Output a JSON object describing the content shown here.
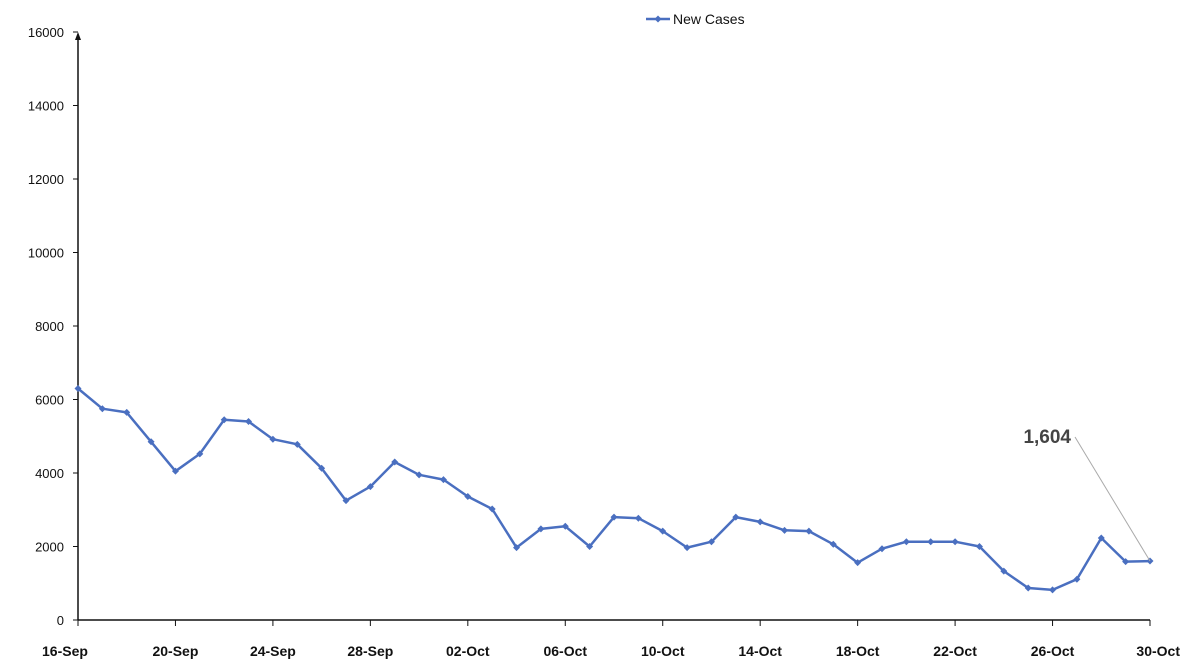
{
  "chart_data": {
    "type": "line",
    "title": "",
    "xlabel": "",
    "ylabel": "",
    "ylim": [
      0,
      16000
    ],
    "y_ticks": [
      0,
      2000,
      4000,
      6000,
      8000,
      10000,
      12000,
      14000,
      16000
    ],
    "x_tick_labels": [
      "16-Sep",
      "20-Sep",
      "24-Sep",
      "28-Sep",
      "02-Oct",
      "06-Oct",
      "10-Oct",
      "14-Oct",
      "18-Oct",
      "22-Oct",
      "26-Oct",
      "30-Oct"
    ],
    "x": [
      "16-Sep",
      "17-Sep",
      "18-Sep",
      "19-Sep",
      "20-Sep",
      "21-Sep",
      "22-Sep",
      "23-Sep",
      "24-Sep",
      "25-Sep",
      "26-Sep",
      "27-Sep",
      "28-Sep",
      "29-Sep",
      "30-Sep",
      "01-Oct",
      "02-Oct",
      "03-Oct",
      "04-Oct",
      "05-Oct",
      "06-Oct",
      "07-Oct",
      "08-Oct",
      "09-Oct",
      "10-Oct",
      "11-Oct",
      "12-Oct",
      "13-Oct",
      "14-Oct",
      "15-Oct",
      "16-Oct",
      "17-Oct",
      "18-Oct",
      "19-Oct",
      "20-Oct",
      "21-Oct",
      "22-Oct",
      "23-Oct",
      "24-Oct",
      "25-Oct",
      "26-Oct",
      "27-Oct",
      "28-Oct",
      "29-Oct",
      "30-Oct"
    ],
    "series": [
      {
        "name": "New Cases",
        "color": "#4a6fc0",
        "values": [
          6300,
          5750,
          5650,
          4850,
          4050,
          4520,
          5450,
          5400,
          4920,
          4780,
          4130,
          3250,
          3630,
          4300,
          3950,
          3820,
          3360,
          3020,
          1970,
          2480,
          2550,
          2000,
          2800,
          2770,
          2420,
          1970,
          2130,
          2800,
          2670,
          2440,
          2420,
          2060,
          1560,
          1940,
          2130,
          2130,
          2130,
          2000,
          1330,
          870,
          820,
          1110,
          2230,
          1590,
          1604
        ]
      }
    ],
    "legend": {
      "position": "top-center"
    },
    "grid": false,
    "annotation": {
      "text": "1,604",
      "target_index": 44
    }
  }
}
